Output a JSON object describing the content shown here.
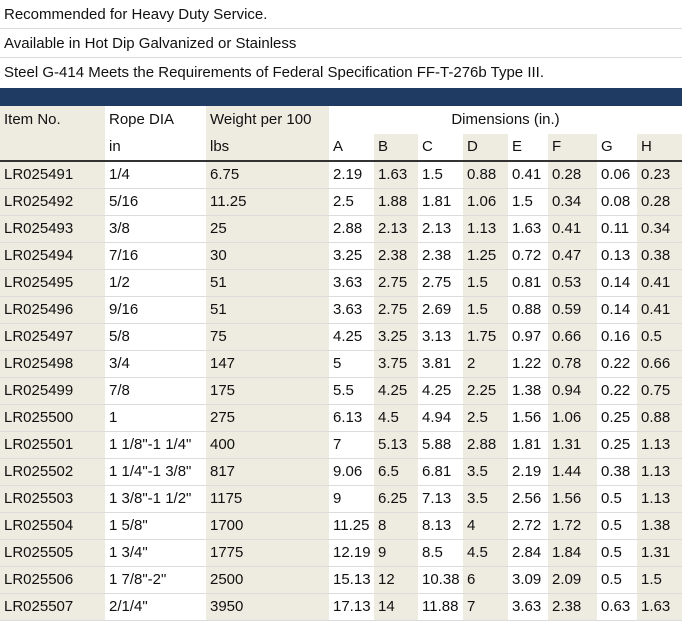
{
  "notes": [
    "Recommended for Heavy Duty Service.",
    "Available in Hot Dip Galvanized or Stainless",
    "Steel G-414 Meets the Requirements of Federal Specification FF-T-276b Type III."
  ],
  "colors": {
    "header_bar": "#1f3b63",
    "shaded_column": "#eeece1"
  },
  "table": {
    "headers": {
      "item_no": "Item No.",
      "rope_dia": "Rope DIA",
      "weight": "Weight per 100",
      "dimensions": "Dimensions (in.)",
      "rope_unit": "in",
      "weight_unit": "lbs",
      "dims": [
        "A",
        "B",
        "C",
        "D",
        "E",
        "F",
        "G",
        "H"
      ]
    },
    "rows": [
      [
        "LR025491",
        "1/4",
        "6.75",
        "2.19",
        "1.63",
        "1.5",
        "0.88",
        "0.41",
        "0.28",
        "0.06",
        "0.23"
      ],
      [
        "LR025492",
        "5/16",
        "11.25",
        "2.5",
        "1.88",
        "1.81",
        "1.06",
        "1.5",
        "0.34",
        "0.08",
        "0.28"
      ],
      [
        "LR025493",
        "3/8",
        "25",
        "2.88",
        "2.13",
        "2.13",
        "1.13",
        "1.63",
        "0.41",
        "0.11",
        "0.34"
      ],
      [
        "LR025494",
        "7/16",
        "30",
        "3.25",
        "2.38",
        "2.38",
        "1.25",
        "0.72",
        "0.47",
        "0.13",
        "0.38"
      ],
      [
        "LR025495",
        "1/2",
        "51",
        "3.63",
        "2.75",
        "2.75",
        "1.5",
        "0.81",
        "0.53",
        "0.14",
        "0.41"
      ],
      [
        "LR025496",
        "9/16",
        "51",
        "3.63",
        "2.75",
        "2.69",
        "1.5",
        "0.88",
        "0.59",
        "0.14",
        "0.41"
      ],
      [
        "LR025497",
        "5/8",
        "75",
        "4.25",
        "3.25",
        "3.13",
        "1.75",
        "0.97",
        "0.66",
        "0.16",
        "0.5"
      ],
      [
        "LR025498",
        "3/4",
        "147",
        "5",
        "3.75",
        "3.81",
        "2",
        "1.22",
        "0.78",
        "0.22",
        "0.66"
      ],
      [
        "LR025499",
        "7/8",
        "175",
        "5.5",
        "4.25",
        "4.25",
        "2.25",
        "1.38",
        "0.94",
        "0.22",
        "0.75"
      ],
      [
        "LR025500",
        "1",
        "275",
        "6.13",
        "4.5",
        "4.94",
        "2.5",
        "1.56",
        "1.06",
        "0.25",
        "0.88"
      ],
      [
        "LR025501",
        "1 1/8\"-1 1/4\"",
        "400",
        "7",
        "5.13",
        "5.88",
        "2.88",
        "1.81",
        "1.31",
        "0.25",
        "1.13"
      ],
      [
        "LR025502",
        "1 1/4\"-1 3/8\"",
        "817",
        "9.06",
        "6.5",
        "6.81",
        "3.5",
        "2.19",
        "1.44",
        "0.38",
        "1.13"
      ],
      [
        "LR025503",
        "1 3/8\"-1 1/2\"",
        "1175",
        "9",
        "6.25",
        "7.13",
        "3.5",
        "2.56",
        "1.56",
        "0.5",
        "1.13"
      ],
      [
        "LR025504",
        "1 5/8\"",
        "1700",
        "11.25",
        "8",
        "8.13",
        "4",
        "2.72",
        "1.72",
        "0.5",
        "1.38"
      ],
      [
        "LR025505",
        "1 3/4\"",
        "1775",
        "12.19",
        "9",
        "8.5",
        "4.5",
        "2.84",
        "1.84",
        "0.5",
        "1.31"
      ],
      [
        "LR025506",
        "1 7/8\"-2\"",
        "2500",
        "15.13",
        "12",
        "10.38",
        "6",
        "3.09",
        "2.09",
        "0.5",
        "1.5"
      ],
      [
        "LR025507",
        "2/1/4\"",
        "3950",
        "17.13",
        "14",
        "11.88",
        "7",
        "3.63",
        "2.38",
        "0.63",
        "1.63"
      ]
    ]
  }
}
